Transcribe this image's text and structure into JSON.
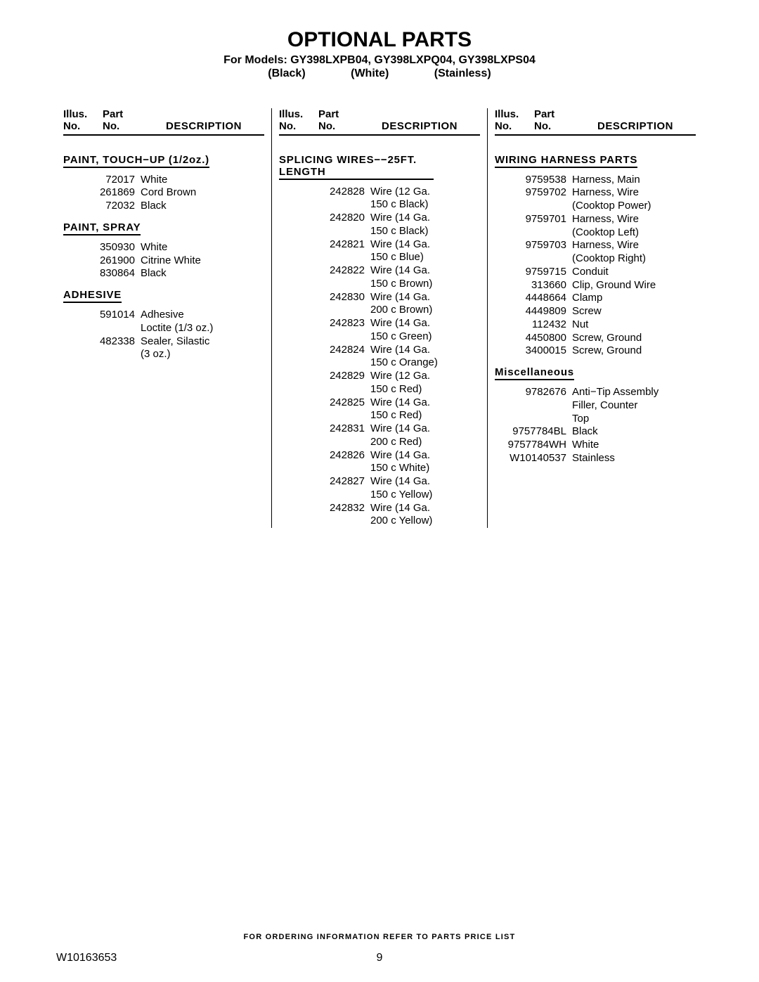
{
  "title": "OPTIONAL PARTS",
  "subtitle": "For Models: GY398LXPB04, GY398LXPQ04, GY398LXPS04",
  "finishes": {
    "black": "(Black)",
    "white": "(White)",
    "stainless": "(Stainless)"
  },
  "headers": {
    "illus1": "Illus.",
    "illus2": "No.",
    "part1": "Part",
    "part2": "No.",
    "desc": "DESCRIPTION"
  },
  "col1": {
    "s1": {
      "head": "PAINT, TOUCH−UP (1/2oz.)",
      "rows": [
        {
          "pn": "72017",
          "dsc": "White"
        },
        {
          "pn": "261869",
          "dsc": "Cord Brown"
        },
        {
          "pn": "72032",
          "dsc": "Black"
        }
      ]
    },
    "s2": {
      "head": "PAINT, SPRAY",
      "rows": [
        {
          "pn": "350930",
          "dsc": "White"
        },
        {
          "pn": "261900",
          "dsc": "Citrine White"
        },
        {
          "pn": "830864",
          "dsc": "Black"
        }
      ]
    },
    "s3": {
      "head": "ADHESIVE",
      "rows": [
        {
          "pn": "591014",
          "dsc": "Adhesive"
        },
        {
          "pn": "",
          "dsc": "Loctite (1/3 oz.)"
        },
        {
          "pn": "482338",
          "dsc": "Sealer, Silastic"
        },
        {
          "pn": "",
          "dsc": "(3 oz.)"
        }
      ]
    }
  },
  "col2": {
    "s1": {
      "head": "SPLICING WIRES−−25FT. LENGTH",
      "rows": [
        {
          "pn": "242828",
          "dsc": "Wire (12 Ga."
        },
        {
          "pn": "",
          "dsc": "150 c Black)"
        },
        {
          "pn": "242820",
          "dsc": "Wire (14 Ga."
        },
        {
          "pn": "",
          "dsc": "150 c Black)"
        },
        {
          "pn": "242821",
          "dsc": "Wire (14 Ga."
        },
        {
          "pn": "",
          "dsc": "150 c Blue)"
        },
        {
          "pn": "242822",
          "dsc": "Wire (14 Ga."
        },
        {
          "pn": "",
          "dsc": "150 c Brown)"
        },
        {
          "pn": "242830",
          "dsc": "Wire (14 Ga."
        },
        {
          "pn": "",
          "dsc": "200 c Brown)"
        },
        {
          "pn": "242823",
          "dsc": "Wire (14 Ga."
        },
        {
          "pn": "",
          "dsc": "150 c Green)"
        },
        {
          "pn": "242824",
          "dsc": "Wire (14 Ga."
        },
        {
          "pn": "",
          "dsc": "150 c Orange)"
        },
        {
          "pn": "242829",
          "dsc": "Wire (12 Ga."
        },
        {
          "pn": "",
          "dsc": "150 c Red)"
        },
        {
          "pn": "242825",
          "dsc": "Wire (14 Ga."
        },
        {
          "pn": "",
          "dsc": "150 c Red)"
        },
        {
          "pn": "242831",
          "dsc": "Wire (14 Ga."
        },
        {
          "pn": "",
          "dsc": "200 c Red)"
        },
        {
          "pn": "242826",
          "dsc": "Wire (14 Ga."
        },
        {
          "pn": "",
          "dsc": "150 c White)"
        },
        {
          "pn": "242827",
          "dsc": "Wire (14 Ga."
        },
        {
          "pn": "",
          "dsc": "150 c Yellow)"
        },
        {
          "pn": "242832",
          "dsc": "Wire (14 Ga."
        },
        {
          "pn": "",
          "dsc": "200 c Yellow)"
        }
      ]
    }
  },
  "col3": {
    "s1": {
      "head": "WIRING HARNESS PARTS",
      "rows": [
        {
          "pn": "9759538",
          "dsc": "Harness, Main"
        },
        {
          "pn": "9759702",
          "dsc": "Harness, Wire"
        },
        {
          "pn": "",
          "dsc": "(Cooktop Power)"
        },
        {
          "pn": "9759701",
          "dsc": "Harness, Wire"
        },
        {
          "pn": "",
          "dsc": "(Cooktop Left)"
        },
        {
          "pn": "9759703",
          "dsc": "Harness, Wire"
        },
        {
          "pn": "",
          "dsc": "(Cooktop Right)"
        },
        {
          "pn": "9759715",
          "dsc": "Conduit"
        },
        {
          "pn": "313660",
          "dsc": "Clip, Ground Wire"
        },
        {
          "pn": "4448664",
          "dsc": "Clamp"
        },
        {
          "pn": "4449809",
          "dsc": "Screw"
        },
        {
          "pn": "112432",
          "dsc": "Nut"
        },
        {
          "pn": "4450800",
          "dsc": "Screw, Ground"
        },
        {
          "pn": "3400015",
          "dsc": "Screw, Ground"
        }
      ]
    },
    "s2": {
      "head": "Miscellaneous",
      "rows": [
        {
          "pn": "9782676",
          "dsc": "Anti−Tip Assembly"
        },
        {
          "pn": "",
          "dsc": "Filler, Counter"
        },
        {
          "pn": "",
          "dsc": "Top"
        },
        {
          "pn": "9757784BL",
          "dsc": "Black"
        },
        {
          "pn": "9757784WH",
          "dsc": "White"
        },
        {
          "pn": "W10140537",
          "dsc": "Stainless"
        }
      ]
    }
  },
  "footer_note": "FOR ORDERING INFORMATION REFER TO PARTS PRICE LIST",
  "doc_no": "W10163653",
  "page_no": "9"
}
